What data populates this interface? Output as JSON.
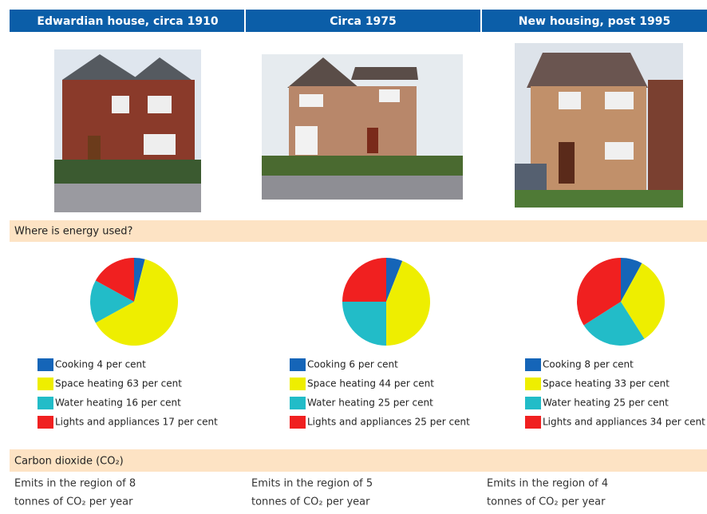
{
  "columns": [
    {
      "heading": "Edwardian house, circa 1910",
      "emission": [
        "Emits in the region of 8",
        "tonnes of CO₂ per year"
      ]
    },
    {
      "heading": "Circa 1975",
      "emission": [
        "Emits in the region of 5",
        "tonnes of CO₂ per year"
      ]
    },
    {
      "heading": "New housing, post 1995",
      "emission": [
        "Emits in the region of 4",
        "tonnes of CO₂ per year"
      ]
    }
  ],
  "sections": {
    "energy": "Where is energy used?",
    "carbon": "Carbon dioxide (CO₂)"
  },
  "chart_data": [
    {
      "type": "pie",
      "categories": [
        "Cooking 4 per cent",
        "Space heating 63 per cent",
        "Water heating 16 per cent",
        "Lights and appliances 17 per cent"
      ],
      "values": [
        4,
        63,
        16,
        17
      ],
      "colors": [
        "#1565b8",
        "#eeee00",
        "#22bcc8",
        "#f02020"
      ]
    },
    {
      "type": "pie",
      "categories": [
        "Cooking 6 per cent",
        "Space heating 44 per cent",
        "Water heating 25 per cent",
        "Lights and appliances 25 per cent"
      ],
      "values": [
        6,
        44,
        25,
        25
      ],
      "colors": [
        "#1565b8",
        "#eeee00",
        "#22bcc8",
        "#f02020"
      ]
    },
    {
      "type": "pie",
      "categories": [
        "Cooking 8 per cent",
        "Space heating 33 per cent",
        "Water heating 25 per cent",
        "Lights and appliances 34 per cent"
      ],
      "values": [
        8,
        33,
        25,
        34
      ],
      "colors": [
        "#1565b8",
        "#eeee00",
        "#22bcc8",
        "#f02020"
      ]
    }
  ]
}
